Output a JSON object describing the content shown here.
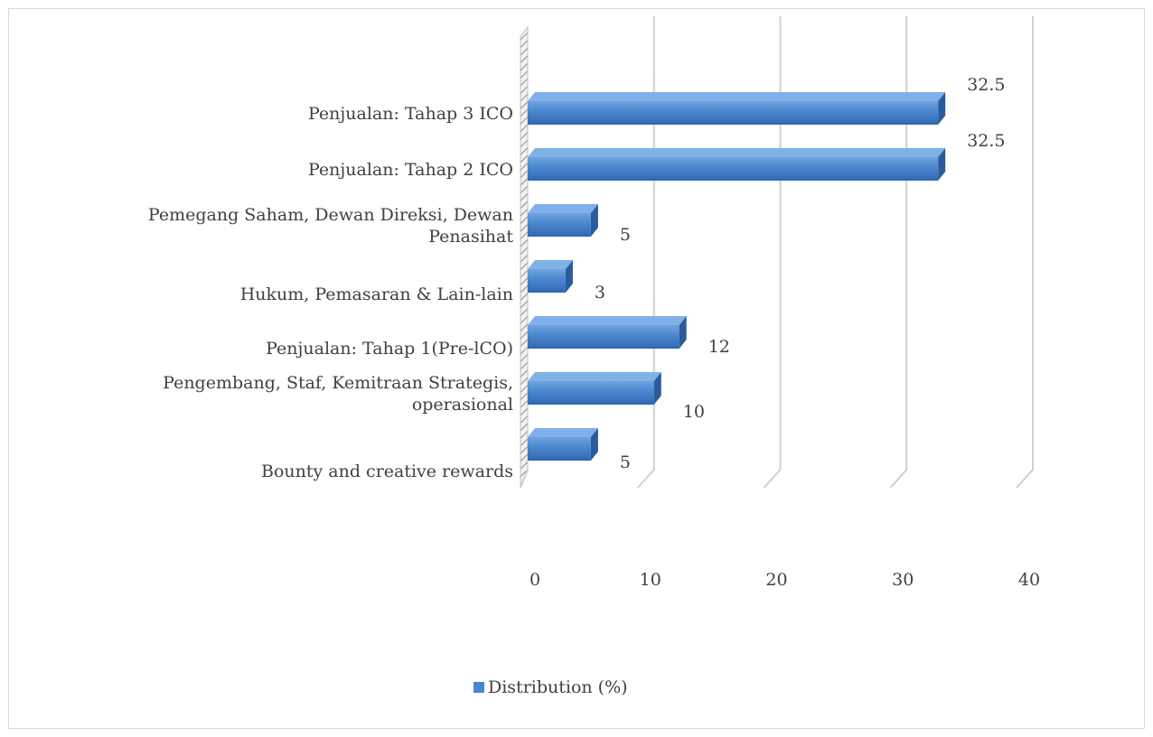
{
  "chart_data": {
    "type": "bar",
    "orientation": "horizontal",
    "style": "3d",
    "categories": [
      "Penjualan: Tahap 3 ICO",
      "Penjualan: Tahap 2 ICO",
      "Pemegang Saham, Dewan Direksi, Dewan Penasihat",
      "Hukum, Pemasaran & Lain-lain",
      "Penjualan: Tahap 1(Pre-lCO)",
      "Pengembang, Staf, Kemitraan Strategis, operasional",
      "Bounty and creative rewards"
    ],
    "category_lines": [
      [
        "Penjualan: Tahap 3 ICO"
      ],
      [
        "Penjualan: Tahap 2 ICO"
      ],
      [
        "Pemegang Saham, Dewan Direksi, Dewan",
        "Penasihat"
      ],
      [
        "Hukum, Pemasaran & Lain-lain"
      ],
      [
        "Penjualan: Tahap 1(Pre-lCO)"
      ],
      [
        "Pengembang, Staf, Kemitraan Strategis,",
        "operasional"
      ],
      [
        "Bounty and creative rewards"
      ]
    ],
    "series": [
      {
        "name": "Distribution (%)",
        "values": [
          32.5,
          32.5,
          5,
          3,
          12,
          10,
          5
        ],
        "color": "#4a86cf"
      }
    ],
    "data_labels": [
      "32.5",
      "32.5",
      "5",
      "3",
      "12",
      "10",
      "5"
    ],
    "x_ticks": [
      "0",
      "10",
      "20",
      "30",
      "40"
    ],
    "xlim": [
      0,
      40
    ],
    "grid": true,
    "legend_position": "bottom"
  },
  "legend": {
    "label": "Distribution (%)"
  }
}
